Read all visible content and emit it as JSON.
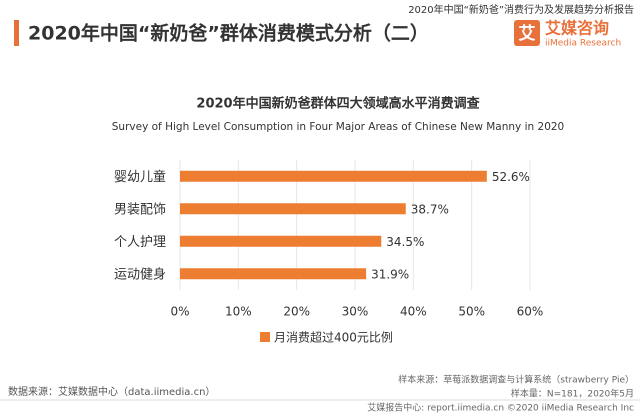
{
  "header": {
    "title": "2020年中国“新奶爸”群体消费模式分析（二）",
    "report": "2020年中国“新奶爸”消费行为及发展趋势分析报告"
  },
  "logo": {
    "icon": "艾",
    "name": "艾媒咨询",
    "sub": "iiMedia Research"
  },
  "chart_data": {
    "type": "bar",
    "orientation": "horizontal",
    "title": "2020年中国新奶爸群体四大领域高水平消费调查",
    "subtitle": "Survey of High Level Consumption in Four Major Areas of Chinese New Manny in 2020",
    "categories": [
      "婴幼儿童",
      "男装配饰",
      "个人护理",
      "运动健身"
    ],
    "series": [
      {
        "name": "月消费超过400元比例",
        "color": "#ed7d31",
        "values": [
          52.6,
          38.7,
          34.5,
          31.9
        ],
        "value_labels": [
          "52.6%",
          "38.7%",
          "34.5%",
          "31.9%"
        ]
      }
    ],
    "xlim": [
      0,
      60
    ],
    "xticks": [
      {
        "value": 0,
        "label": "0%"
      },
      {
        "value": 10,
        "label": "10%"
      },
      {
        "value": 20,
        "label": "20%"
      },
      {
        "value": 30,
        "label": "30%"
      },
      {
        "value": 40,
        "label": "40%"
      },
      {
        "value": 50,
        "label": "50%"
      },
      {
        "value": 60,
        "label": "60%"
      }
    ],
    "grid": true
  },
  "footer": {
    "sample_source": "样本来源：草莓派数据调查与计算系统（strawberry Pie）",
    "source": "数据来源：艾媒数据中心（data.iimedia.cn）",
    "sample_size": "样本量：N=181，2020年5月",
    "bottom": "艾媒报告中心: report.iimedia.cn ©2020  iiMedia Research  Inc"
  }
}
